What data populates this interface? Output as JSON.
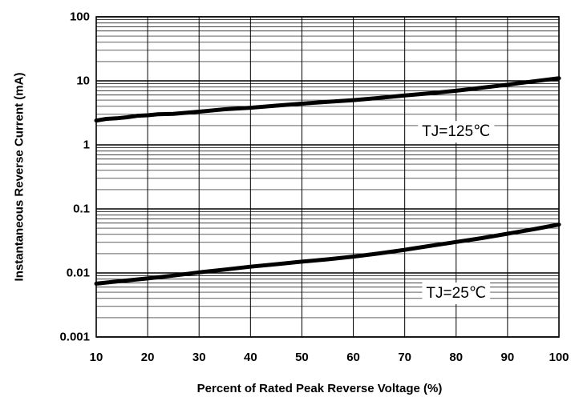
{
  "chart_data": {
    "type": "line",
    "xlabel": "Percent of Rated Peak Reverse Voltage (%)",
    "ylabel": "Instantaneous Reverse Current (mA)",
    "xlim": [
      10,
      100
    ],
    "ylim": [
      0.001,
      100
    ],
    "yscale": "log",
    "grid": true,
    "x_ticks": [
      "10",
      "20",
      "30",
      "40",
      "50",
      "60",
      "70",
      "80",
      "90",
      "100"
    ],
    "y_ticks": [
      "0.001",
      "0.01",
      "0.1",
      "1",
      "10",
      "100"
    ],
    "series": [
      {
        "name": "TJ=125℃",
        "x": [
          10,
          12,
          14,
          16,
          18,
          20,
          22,
          25,
          30,
          35,
          40,
          45,
          50,
          55,
          60,
          65,
          70,
          75,
          80,
          85,
          90,
          95,
          100
        ],
        "values": [
          2.4,
          2.55,
          2.6,
          2.7,
          2.85,
          2.9,
          3.0,
          3.05,
          3.3,
          3.6,
          3.8,
          4.1,
          4.4,
          4.7,
          5.0,
          5.4,
          5.9,
          6.4,
          7.0,
          7.8,
          8.7,
          9.8,
          11.0
        ]
      },
      {
        "name": "TJ=25℃",
        "x": [
          10,
          15,
          20,
          25,
          30,
          35,
          40,
          45,
          50,
          55,
          60,
          65,
          70,
          75,
          80,
          85,
          90,
          95,
          100
        ],
        "values": [
          0.0068,
          0.0075,
          0.0082,
          0.0091,
          0.0102,
          0.0113,
          0.0125,
          0.0137,
          0.015,
          0.0163,
          0.018,
          0.0202,
          0.023,
          0.0265,
          0.0305,
          0.035,
          0.041,
          0.048,
          0.057
        ]
      }
    ],
    "annotations": [
      {
        "text": "TJ=125℃",
        "x": 80,
        "y": 1.6
      },
      {
        "text": "TJ=25℃",
        "x": 80,
        "y": 0.0048
      }
    ]
  }
}
